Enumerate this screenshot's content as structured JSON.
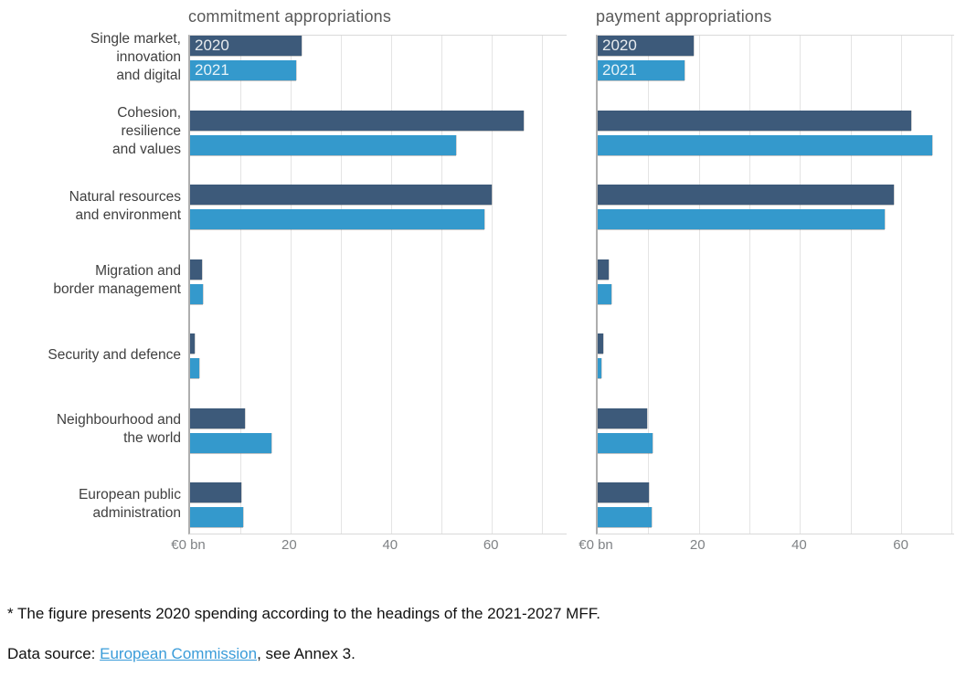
{
  "colors": {
    "bar_2020": "#3d5a7a",
    "bar_2021": "#3499cc",
    "title": "#595959",
    "tick": "#7f8285",
    "category_label": "#3f3f3f",
    "grid": "#e4e4e4",
    "axis_line": "#aeaeae",
    "link": "#3a9cd9"
  },
  "category_labels_lines": [
    [
      "Single market,",
      "innovation",
      "and digital"
    ],
    [
      "Cohesion,",
      "resilience",
      "and values"
    ],
    [
      "Natural resources",
      "and environment"
    ],
    [
      "Migration and",
      "border management"
    ],
    [
      "Security and defence"
    ],
    [
      "Neighbourhood and",
      "the world"
    ],
    [
      "European public",
      "administration"
    ]
  ],
  "chart_data": [
    {
      "type": "bar",
      "orientation": "horizontal",
      "title": "commitment appropriations",
      "unit": "€ bn",
      "categories": [
        "Single market, innovation and digital",
        "Cohesion, resilience and values",
        "Natural resources and environment",
        "Migration and border management",
        "Security and defence",
        "Neighbourhood and the world",
        "European public administration"
      ],
      "series": [
        {
          "name": "2020",
          "color_key": "bar_2020",
          "values": [
            22.2,
            66.5,
            60.1,
            2.4,
            1.0,
            10.9,
            10.2
          ]
        },
        {
          "name": "2021",
          "color_key": "bar_2021",
          "values": [
            21.2,
            53.0,
            58.7,
            2.5,
            1.8,
            16.2,
            10.6
          ]
        }
      ],
      "xlim": [
        0,
        75
      ],
      "gridline_step": 10,
      "ticks": [
        {
          "value": 0,
          "label": "€0 bn"
        },
        {
          "value": 20,
          "label": "20"
        },
        {
          "value": 40,
          "label": "40"
        },
        {
          "value": 60,
          "label": "60"
        }
      ],
      "legend_in_first_bars": true,
      "grid": true
    },
    {
      "type": "bar",
      "orientation": "horizontal",
      "title": "payment appropriations",
      "unit": "€ bn",
      "categories": [
        "Single market, innovation and digital",
        "Cohesion, resilience and values",
        "Natural resources and environment",
        "Migration and border management",
        "Security and defence",
        "Neighbourhood and the world",
        "European public administration"
      ],
      "series": [
        {
          "name": "2020",
          "color_key": "bar_2020",
          "values": [
            19.0,
            62.0,
            58.6,
            2.2,
            1.1,
            9.7,
            10.2
          ]
        },
        {
          "name": "2021",
          "color_key": "bar_2021",
          "values": [
            17.1,
            66.2,
            56.8,
            2.8,
            0.8,
            10.9,
            10.6
          ]
        }
      ],
      "xlim": [
        0,
        70.5
      ],
      "gridline_step": 10,
      "ticks": [
        {
          "value": 0,
          "label": "€0 bn"
        },
        {
          "value": 20,
          "label": "20"
        },
        {
          "value": 40,
          "label": "40"
        },
        {
          "value": 60,
          "label": "60"
        }
      ],
      "legend_in_first_bars": true,
      "grid": true
    }
  ],
  "footnote": {
    "line1": "* The figure presents 2020 spending according to the headings of the 2021-2027 MFF.",
    "line2_prefix": "Data source: ",
    "line2_link": "European Commission",
    "line2_suffix": ", see Annex 3."
  }
}
